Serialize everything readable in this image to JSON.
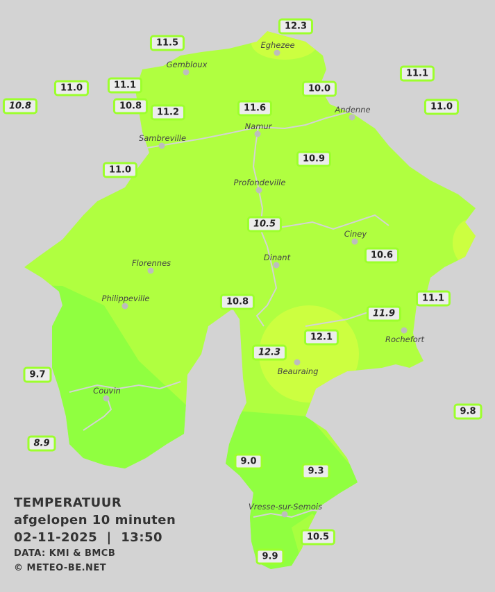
{
  "legend": {
    "title": "TEMPERATUUR",
    "subtitle": "afgelopen 10 minuten",
    "datetime": "02-11-2025  |  13:50",
    "source": "DATA: KMI & BMCB",
    "copyright": "© METEO-BE.NET"
  },
  "colors": {
    "background": "#d3d3d3",
    "temp_11": "#b0ff40",
    "temp_9": "#90ff40",
    "temp_12": "#ccff40",
    "station_border": "#9cff2c"
  },
  "towns": [
    "Eghezee",
    "Gembloux",
    "Andenne",
    "Namur",
    "Sambreville",
    "Profondeville",
    "Ciney",
    "Dinant",
    "Florennes",
    "Philippeville",
    "Couvin",
    "Rochefort",
    "Beauraing",
    "Vresse-sur-Semois"
  ],
  "stations": [
    {
      "value": "12.3",
      "italic": false
    },
    {
      "value": "11.5",
      "italic": false
    },
    {
      "value": "11.1",
      "italic": false
    },
    {
      "value": "11.0",
      "italic": false
    },
    {
      "value": "11.1",
      "italic": false
    },
    {
      "value": "10.0",
      "italic": false
    },
    {
      "value": "10.8",
      "italic": true
    },
    {
      "value": "10.8",
      "italic": false
    },
    {
      "value": "11.2",
      "italic": false
    },
    {
      "value": "11.6",
      "italic": false
    },
    {
      "value": "11.0",
      "italic": false
    },
    {
      "value": "10.9",
      "italic": false
    },
    {
      "value": "11.0",
      "italic": false
    },
    {
      "value": "10.5",
      "italic": true
    },
    {
      "value": "10.6",
      "italic": false
    },
    {
      "value": "10.8",
      "italic": false
    },
    {
      "value": "11.1",
      "italic": false
    },
    {
      "value": "11.9",
      "italic": true
    },
    {
      "value": "12.1",
      "italic": false
    },
    {
      "value": "12.3",
      "italic": true
    },
    {
      "value": "9.7",
      "italic": false
    },
    {
      "value": "9.8",
      "italic": false
    },
    {
      "value": "8.9",
      "italic": true
    },
    {
      "value": "9.0",
      "italic": false
    },
    {
      "value": "9.3",
      "italic": false
    },
    {
      "value": "10.5",
      "italic": false
    },
    {
      "value": "9.9",
      "italic": false
    }
  ]
}
